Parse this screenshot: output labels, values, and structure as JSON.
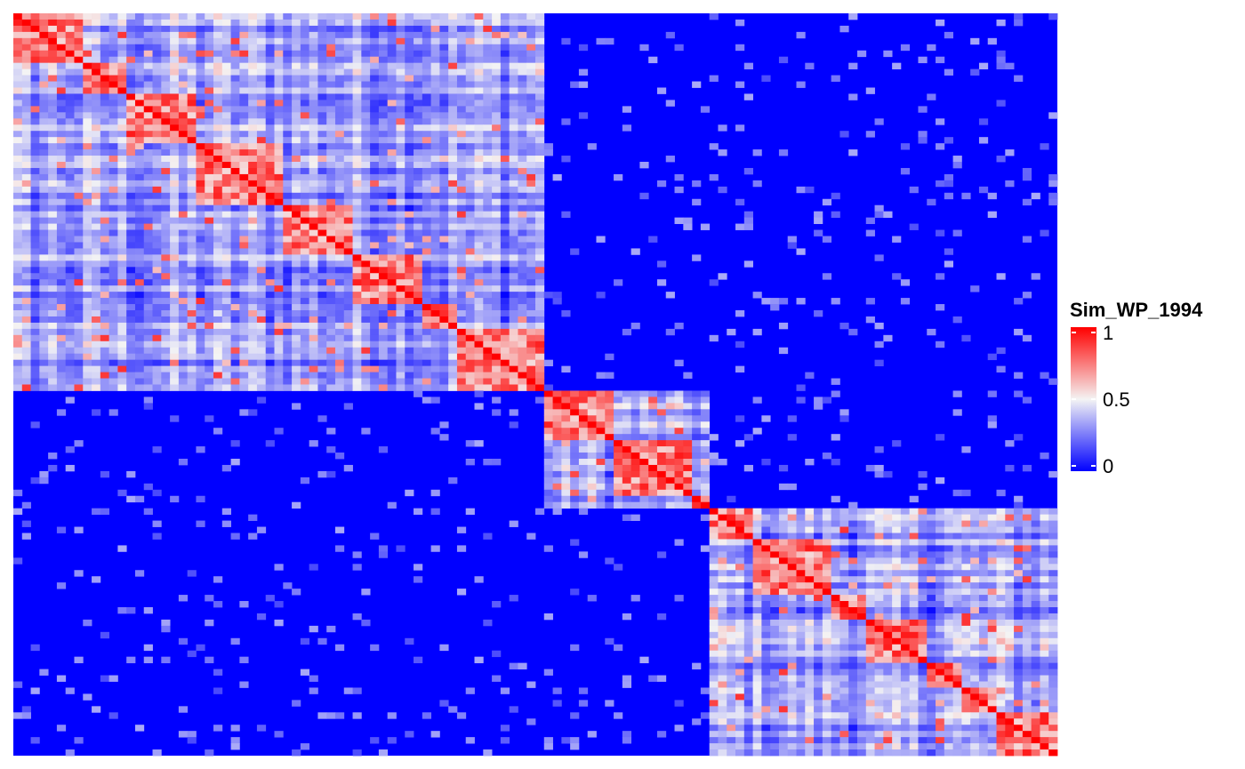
{
  "chart_data": {
    "type": "heatmap",
    "legend": {
      "title": "Sim_WP_1994",
      "ticks": [
        {
          "value": 1,
          "label": "1"
        },
        {
          "value": 0.5,
          "label": "0.5"
        },
        {
          "value": 0,
          "label": "0"
        }
      ],
      "range": [
        0,
        1
      ],
      "placement": "right"
    },
    "color_scale": {
      "low": "#0000FF",
      "mid": "#F4F4F4",
      "high": "#FF0000",
      "midpoint": 0.5
    },
    "n_rows": 3000,
    "n_cols": 3000,
    "rows_cluster_blocks": [
      {
        "name": "",
        "start": 0,
        "end": 0.509
      },
      {
        "name": "",
        "start": 0.509,
        "end": 0.664
      },
      {
        "name": "",
        "start": 0.664,
        "end": 1.0
      }
    ],
    "block_similarity": {
      "within_major_cluster": 0.32,
      "between_major_clusters": 0.0,
      "within_sub_block": 0.75
    },
    "diagonal_value": 1
  }
}
